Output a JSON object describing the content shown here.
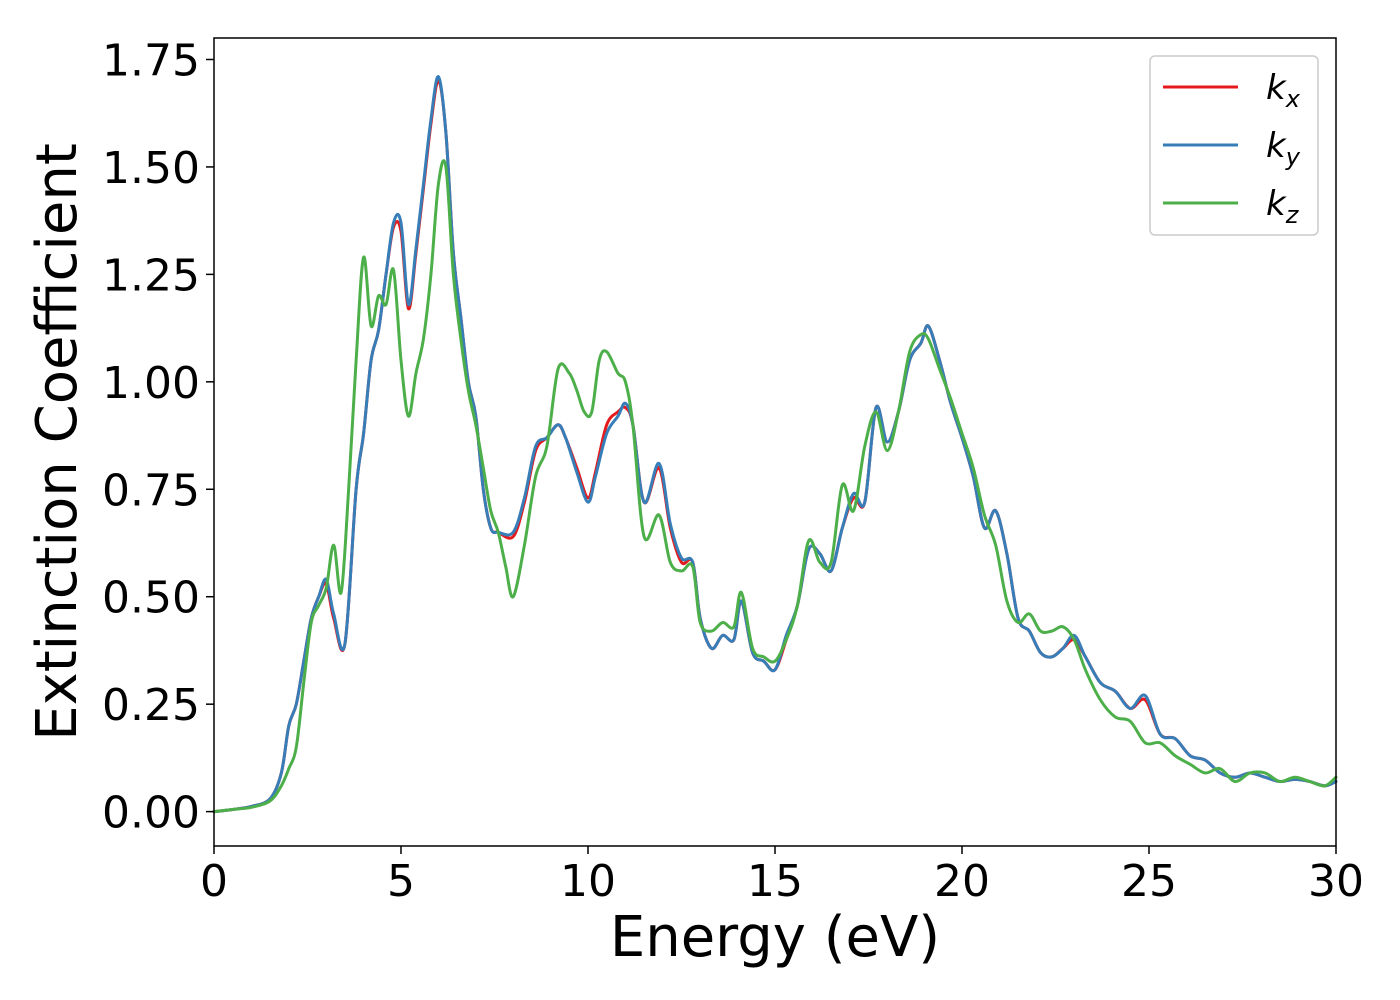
{
  "chart_data": {
    "type": "line",
    "title": "",
    "xlabel": "Energy (eV)",
    "ylabel": "Extinction Coefficient",
    "xlim": [
      0,
      30
    ],
    "ylim": [
      -0.08,
      1.8
    ],
    "xticks": [
      0,
      5,
      10,
      15,
      20,
      25,
      30
    ],
    "xtick_labels": [
      "0",
      "5",
      "10",
      "15",
      "20",
      "25",
      "30"
    ],
    "yticks": [
      0.0,
      0.25,
      0.5,
      0.75,
      1.0,
      1.25,
      1.5,
      1.75
    ],
    "ytick_labels": [
      "0.00",
      "0.25",
      "0.50",
      "0.75",
      "1.00",
      "1.25",
      "1.50",
      "1.75"
    ],
    "grid": false,
    "legend_position": "top-right",
    "series": [
      {
        "name": "k_x",
        "label_main": "k",
        "label_sub": "x",
        "color": "#e41a1c",
        "x": [
          0,
          0.5,
          1.0,
          1.5,
          1.8,
          2.0,
          2.2,
          2.4,
          2.6,
          2.8,
          3.0,
          3.2,
          3.5,
          3.8,
          4.0,
          4.2,
          4.4,
          4.6,
          4.8,
          5.0,
          5.2,
          5.4,
          5.6,
          5.8,
          6.0,
          6.2,
          6.4,
          6.6,
          6.8,
          7.0,
          7.2,
          7.4,
          7.6,
          8.0,
          8.3,
          8.6,
          8.9,
          9.2,
          9.4,
          9.7,
          10.0,
          10.2,
          10.5,
          10.8,
          11.0,
          11.2,
          11.5,
          11.9,
          12.2,
          12.5,
          12.8,
          13.0,
          13.3,
          13.6,
          13.9,
          14.1,
          14.4,
          14.7,
          15.0,
          15.3,
          15.6,
          15.9,
          16.2,
          16.5,
          16.8,
          17.1,
          17.4,
          17.7,
          18.0,
          18.3,
          18.6,
          18.9,
          19.1,
          19.4,
          19.7,
          20.0,
          20.3,
          20.6,
          20.9,
          21.2,
          21.5,
          21.8,
          22.1,
          22.4,
          22.7,
          23.0,
          23.3,
          23.7,
          24.1,
          24.5,
          24.9,
          25.3,
          25.7,
          26.1,
          26.5,
          26.9,
          27.3,
          27.7,
          28.1,
          28.5,
          28.9,
          29.3,
          29.7,
          30.0
        ],
        "y": [
          0.0,
          0.005,
          0.012,
          0.03,
          0.09,
          0.2,
          0.25,
          0.35,
          0.45,
          0.5,
          0.53,
          0.45,
          0.39,
          0.75,
          0.88,
          1.05,
          1.12,
          1.25,
          1.36,
          1.35,
          1.17,
          1.3,
          1.45,
          1.6,
          1.7,
          1.58,
          1.3,
          1.15,
          1.0,
          0.92,
          0.75,
          0.66,
          0.65,
          0.64,
          0.72,
          0.84,
          0.87,
          0.9,
          0.87,
          0.8,
          0.73,
          0.79,
          0.9,
          0.93,
          0.94,
          0.9,
          0.72,
          0.8,
          0.66,
          0.58,
          0.58,
          0.45,
          0.38,
          0.41,
          0.4,
          0.49,
          0.37,
          0.35,
          0.33,
          0.4,
          0.48,
          0.61,
          0.6,
          0.56,
          0.66,
          0.73,
          0.72,
          0.94,
          0.86,
          0.93,
          1.05,
          1.09,
          1.13,
          1.05,
          0.95,
          0.87,
          0.78,
          0.66,
          0.7,
          0.6,
          0.45,
          0.42,
          0.37,
          0.36,
          0.38,
          0.4,
          0.36,
          0.3,
          0.28,
          0.24,
          0.26,
          0.18,
          0.17,
          0.13,
          0.12,
          0.09,
          0.08,
          0.09,
          0.08,
          0.07,
          0.075,
          0.07,
          0.06,
          0.07
        ]
      },
      {
        "name": "k_y",
        "label_main": "k",
        "label_sub": "y",
        "color": "#377eb8",
        "x": [
          0,
          0.5,
          1.0,
          1.5,
          1.8,
          2.0,
          2.2,
          2.4,
          2.6,
          2.8,
          3.0,
          3.2,
          3.5,
          3.8,
          4.0,
          4.2,
          4.4,
          4.6,
          4.8,
          5.0,
          5.2,
          5.4,
          5.6,
          5.8,
          6.0,
          6.2,
          6.4,
          6.6,
          6.8,
          7.0,
          7.2,
          7.4,
          7.6,
          8.0,
          8.3,
          8.6,
          8.9,
          9.2,
          9.4,
          9.7,
          10.0,
          10.2,
          10.5,
          10.8,
          11.0,
          11.2,
          11.5,
          11.9,
          12.2,
          12.5,
          12.8,
          13.0,
          13.3,
          13.6,
          13.9,
          14.1,
          14.4,
          14.7,
          15.0,
          15.3,
          15.6,
          15.9,
          16.2,
          16.5,
          16.8,
          17.1,
          17.4,
          17.7,
          18.0,
          18.3,
          18.6,
          18.9,
          19.1,
          19.4,
          19.7,
          20.0,
          20.3,
          20.6,
          20.9,
          21.2,
          21.5,
          21.8,
          22.1,
          22.4,
          22.7,
          23.0,
          23.3,
          23.7,
          24.1,
          24.5,
          24.9,
          25.3,
          25.7,
          26.1,
          26.5,
          26.9,
          27.3,
          27.7,
          28.1,
          28.5,
          28.9,
          29.3,
          29.7,
          30.0
        ],
        "y": [
          0.0,
          0.005,
          0.012,
          0.03,
          0.09,
          0.2,
          0.25,
          0.35,
          0.45,
          0.5,
          0.54,
          0.46,
          0.39,
          0.75,
          0.88,
          1.05,
          1.12,
          1.25,
          1.37,
          1.37,
          1.18,
          1.31,
          1.46,
          1.61,
          1.71,
          1.58,
          1.3,
          1.15,
          1.0,
          0.92,
          0.75,
          0.66,
          0.65,
          0.65,
          0.73,
          0.85,
          0.87,
          0.9,
          0.87,
          0.79,
          0.72,
          0.78,
          0.88,
          0.92,
          0.95,
          0.9,
          0.72,
          0.81,
          0.67,
          0.59,
          0.58,
          0.45,
          0.38,
          0.41,
          0.4,
          0.49,
          0.37,
          0.35,
          0.33,
          0.41,
          0.48,
          0.61,
          0.6,
          0.56,
          0.66,
          0.74,
          0.72,
          0.94,
          0.86,
          0.93,
          1.05,
          1.09,
          1.13,
          1.05,
          0.95,
          0.87,
          0.78,
          0.66,
          0.7,
          0.6,
          0.45,
          0.42,
          0.37,
          0.36,
          0.38,
          0.41,
          0.36,
          0.3,
          0.28,
          0.24,
          0.27,
          0.18,
          0.17,
          0.13,
          0.12,
          0.09,
          0.08,
          0.09,
          0.08,
          0.07,
          0.075,
          0.07,
          0.06,
          0.07
        ]
      },
      {
        "name": "k_z",
        "label_main": "k",
        "label_sub": "z",
        "color": "#4daf4a",
        "x": [
          0,
          0.5,
          1.0,
          1.5,
          1.8,
          2.0,
          2.2,
          2.4,
          2.6,
          2.8,
          3.0,
          3.2,
          3.4,
          3.6,
          3.8,
          4.0,
          4.2,
          4.4,
          4.6,
          4.8,
          5.0,
          5.2,
          5.4,
          5.6,
          5.8,
          6.0,
          6.2,
          6.4,
          6.6,
          6.8,
          7.0,
          7.2,
          7.4,
          7.6,
          7.8,
          8.0,
          8.3,
          8.6,
          8.9,
          9.2,
          9.5,
          9.7,
          9.9,
          10.1,
          10.3,
          10.5,
          10.8,
          11.0,
          11.2,
          11.5,
          11.9,
          12.2,
          12.5,
          12.8,
          13.0,
          13.3,
          13.6,
          13.9,
          14.1,
          14.4,
          14.7,
          15.0,
          15.3,
          15.6,
          15.9,
          16.2,
          16.5,
          16.8,
          17.1,
          17.4,
          17.7,
          18.0,
          18.3,
          18.6,
          18.9,
          19.1,
          19.4,
          19.7,
          20.0,
          20.3,
          20.6,
          20.9,
          21.2,
          21.5,
          21.8,
          22.1,
          22.4,
          22.7,
          23.0,
          23.3,
          23.7,
          24.1,
          24.5,
          24.9,
          25.3,
          25.7,
          26.1,
          26.5,
          26.9,
          27.3,
          27.7,
          28.1,
          28.5,
          28.9,
          29.3,
          29.7,
          30.0
        ],
        "y": [
          0.0,
          0.005,
          0.01,
          0.025,
          0.06,
          0.1,
          0.15,
          0.3,
          0.44,
          0.48,
          0.52,
          0.62,
          0.51,
          0.75,
          1.05,
          1.29,
          1.13,
          1.2,
          1.18,
          1.26,
          1.05,
          0.92,
          1.02,
          1.1,
          1.25,
          1.46,
          1.5,
          1.25,
          1.1,
          0.98,
          0.9,
          0.8,
          0.7,
          0.65,
          0.57,
          0.5,
          0.62,
          0.78,
          0.85,
          1.03,
          1.02,
          0.98,
          0.93,
          0.93,
          1.05,
          1.07,
          1.02,
          1.0,
          0.9,
          0.64,
          0.69,
          0.58,
          0.56,
          0.57,
          0.44,
          0.42,
          0.44,
          0.43,
          0.51,
          0.38,
          0.36,
          0.35,
          0.4,
          0.48,
          0.63,
          0.58,
          0.58,
          0.76,
          0.7,
          0.85,
          0.93,
          0.84,
          0.93,
          1.07,
          1.11,
          1.1,
          1.03,
          0.96,
          0.88,
          0.8,
          0.69,
          0.62,
          0.49,
          0.44,
          0.46,
          0.42,
          0.42,
          0.43,
          0.4,
          0.33,
          0.26,
          0.22,
          0.21,
          0.16,
          0.16,
          0.13,
          0.11,
          0.09,
          0.1,
          0.07,
          0.09,
          0.09,
          0.07,
          0.08,
          0.07,
          0.06,
          0.08
        ]
      }
    ]
  }
}
